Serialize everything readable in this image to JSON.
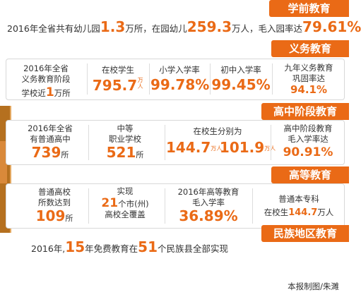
{
  "preschool": {
    "header": "学前教育",
    "t1": "2016年全省共有幼儿园",
    "v1": "1.3",
    "t2": "万所，在园幼儿",
    "v2": "259.3",
    "t3": "万人，毛入园率达",
    "v3": "79.61%"
  },
  "compulsory": {
    "header": "义务教育",
    "schools_l1": "2016年全省",
    "schools_l2": "义务教育阶段",
    "schools_l3a": "学校近",
    "schools_v": "1",
    "schools_l3b": "万所",
    "students_label": "在校学生",
    "students_v": "795.7",
    "students_unit": "万人",
    "primary_label": "小学入学率",
    "primary_v": "99.78%",
    "junior_label": "初中入学率",
    "junior_v": "99.45%",
    "retention_l1": "九年义务教育",
    "retention_l2": "巩固率达",
    "retention_v": "94.1%"
  },
  "highschool": {
    "header": "高中阶段教育",
    "gen_l1": "2016年全省",
    "gen_l2": "有普通高中",
    "gen_v": "739",
    "gen_unit": "所",
    "voc_l1": "中等",
    "voc_l2": "职业学校",
    "voc_v": "521",
    "voc_unit": "所",
    "enroll_label": "在校生分别为",
    "enroll_v1": "144.7",
    "enroll_v2": "101.9",
    "enroll_unit": "万人",
    "rate_l1": "高中阶段教育",
    "rate_l2": "毛入学率达",
    "rate_v": "90.91%"
  },
  "higher": {
    "header": "高等教育",
    "count_l1": "普通高校",
    "count_l2": "所数达到",
    "count_v": "109",
    "count_unit": "所",
    "cover_l1": "实现",
    "cover_v": "21",
    "cover_l2": "个市(州)",
    "cover_l3": "高校全覆盖",
    "gross_l1": "2016年高等教育",
    "gross_l2": "毛入学率",
    "gross_v": "36.89%",
    "ug_l1": "普通本专科",
    "ug_l2a": "在校生",
    "ug_v": "144.7",
    "ug_l2b": "万人"
  },
  "ethnic": {
    "header": "民族地区教育",
    "t1": "2016年,",
    "v1": "15",
    "t2": "年免费教育在",
    "v2": "51",
    "t3": "个民族县全部实现"
  },
  "credit": "本报制图/朱濉",
  "colors": {
    "accent": "#ea6a16",
    "text": "#333333",
    "border": "#d8d8d8"
  }
}
